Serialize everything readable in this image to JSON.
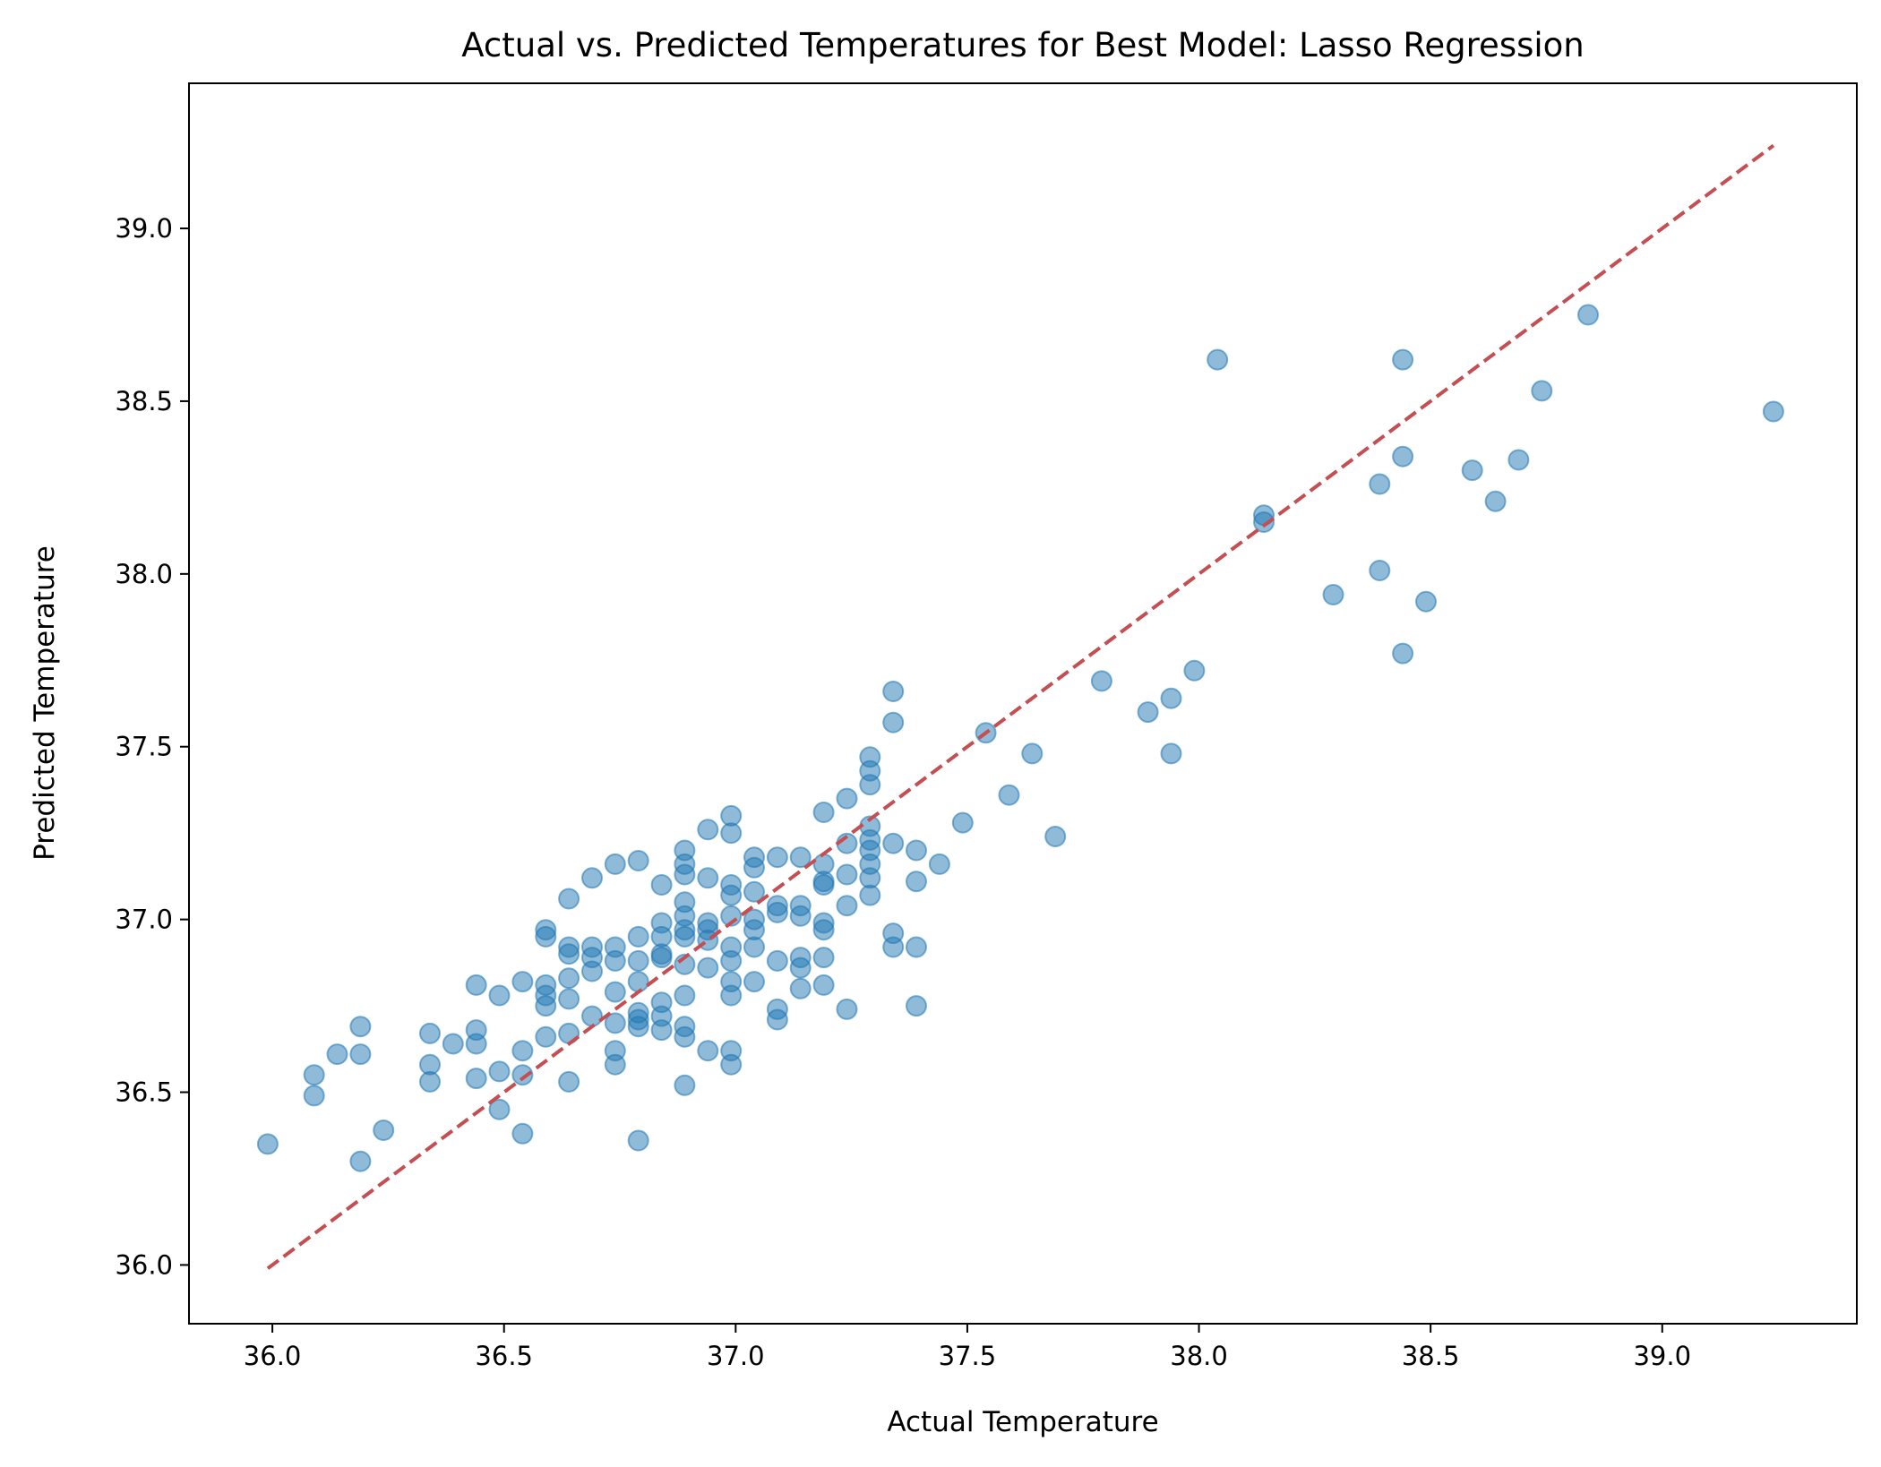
{
  "chart_data": {
    "type": "scatter",
    "title": "Actual vs. Predicted Temperatures for Best Model: Lasso Regression",
    "xlabel": "Actual Temperature",
    "ylabel": "Predicted Temperature",
    "xlim": [
      35.82,
      39.42
    ],
    "ylim": [
      35.83,
      39.42
    ],
    "xticks": [
      36.0,
      36.5,
      37.0,
      37.5,
      38.0,
      38.5,
      39.0
    ],
    "yticks": [
      36.0,
      36.5,
      37.0,
      37.5,
      38.0,
      38.5,
      39.0
    ],
    "xtick_labels": [
      "36.0",
      "36.5",
      "37.0",
      "37.5",
      "38.0",
      "38.5",
      "39.0"
    ],
    "ytick_labels": [
      "36.0",
      "36.5",
      "37.0",
      "37.5",
      "38.0",
      "38.5",
      "39.0"
    ],
    "grid": false,
    "reference_line": {
      "x": [
        35.99,
        39.24
      ],
      "y": [
        35.99,
        39.24
      ],
      "style": "dashed",
      "color": "#c44e52"
    },
    "point_color": "#1f77b4",
    "points": [
      [
        35.99,
        36.35
      ],
      [
        36.09,
        36.55
      ],
      [
        36.09,
        36.49
      ],
      [
        36.14,
        36.61
      ],
      [
        36.19,
        36.69
      ],
      [
        36.19,
        36.61
      ],
      [
        36.19,
        36.3
      ],
      [
        36.24,
        36.39
      ],
      [
        36.34,
        36.67
      ],
      [
        36.34,
        36.58
      ],
      [
        36.34,
        36.53
      ],
      [
        36.39,
        36.64
      ],
      [
        36.44,
        36.81
      ],
      [
        36.44,
        36.68
      ],
      [
        36.44,
        36.64
      ],
      [
        36.44,
        36.54
      ],
      [
        36.49,
        36.78
      ],
      [
        36.49,
        36.56
      ],
      [
        36.49,
        36.45
      ],
      [
        36.54,
        36.82
      ],
      [
        36.54,
        36.62
      ],
      [
        36.54,
        36.55
      ],
      [
        36.54,
        36.38
      ],
      [
        36.59,
        36.97
      ],
      [
        36.59,
        36.95
      ],
      [
        36.59,
        36.81
      ],
      [
        36.59,
        36.78
      ],
      [
        36.59,
        36.75
      ],
      [
        36.59,
        36.66
      ],
      [
        36.64,
        37.06
      ],
      [
        36.64,
        36.92
      ],
      [
        36.64,
        36.9
      ],
      [
        36.64,
        36.83
      ],
      [
        36.64,
        36.77
      ],
      [
        36.64,
        36.67
      ],
      [
        36.64,
        36.53
      ],
      [
        36.69,
        37.12
      ],
      [
        36.69,
        36.92
      ],
      [
        36.69,
        36.89
      ],
      [
        36.69,
        36.85
      ],
      [
        36.69,
        36.72
      ],
      [
        36.74,
        37.16
      ],
      [
        36.74,
        36.92
      ],
      [
        36.74,
        36.88
      ],
      [
        36.74,
        36.79
      ],
      [
        36.74,
        36.7
      ],
      [
        36.74,
        36.62
      ],
      [
        36.74,
        36.58
      ],
      [
        36.79,
        37.17
      ],
      [
        36.79,
        36.95
      ],
      [
        36.79,
        36.88
      ],
      [
        36.79,
        36.82
      ],
      [
        36.79,
        36.73
      ],
      [
        36.79,
        36.71
      ],
      [
        36.79,
        36.69
      ],
      [
        36.79,
        36.36
      ],
      [
        36.84,
        37.1
      ],
      [
        36.84,
        36.99
      ],
      [
        36.84,
        36.95
      ],
      [
        36.84,
        36.9
      ],
      [
        36.84,
        36.89
      ],
      [
        36.84,
        36.76
      ],
      [
        36.84,
        36.72
      ],
      [
        36.84,
        36.68
      ],
      [
        36.89,
        37.2
      ],
      [
        36.89,
        37.16
      ],
      [
        36.89,
        37.13
      ],
      [
        36.89,
        37.05
      ],
      [
        36.89,
        37.01
      ],
      [
        36.89,
        36.97
      ],
      [
        36.89,
        36.95
      ],
      [
        36.89,
        36.87
      ],
      [
        36.89,
        36.78
      ],
      [
        36.89,
        36.69
      ],
      [
        36.89,
        36.66
      ],
      [
        36.89,
        36.52
      ],
      [
        36.94,
        37.26
      ],
      [
        36.94,
        37.12
      ],
      [
        36.94,
        36.99
      ],
      [
        36.94,
        36.94
      ],
      [
        36.94,
        36.86
      ],
      [
        36.94,
        36.62
      ],
      [
        36.99,
        37.3
      ],
      [
        36.99,
        37.25
      ],
      [
        36.99,
        37.1
      ],
      [
        36.99,
        37.07
      ],
      [
        36.99,
        37.01
      ],
      [
        36.99,
        36.92
      ],
      [
        36.99,
        36.88
      ],
      [
        36.99,
        36.82
      ],
      [
        36.99,
        36.78
      ],
      [
        36.99,
        36.62
      ],
      [
        36.99,
        36.58
      ],
      [
        37.04,
        37.18
      ],
      [
        37.04,
        37.15
      ],
      [
        37.04,
        37.08
      ],
      [
        37.04,
        37.0
      ],
      [
        37.04,
        36.97
      ],
      [
        36.94,
        36.97
      ],
      [
        37.04,
        36.92
      ],
      [
        37.04,
        36.82
      ],
      [
        37.09,
        37.18
      ],
      [
        37.09,
        37.04
      ],
      [
        37.09,
        37.02
      ],
      [
        37.09,
        36.88
      ],
      [
        37.09,
        36.74
      ],
      [
        37.09,
        36.71
      ],
      [
        37.14,
        37.18
      ],
      [
        37.14,
        37.04
      ],
      [
        37.14,
        37.01
      ],
      [
        37.14,
        36.89
      ],
      [
        37.14,
        36.86
      ],
      [
        37.14,
        36.8
      ],
      [
        37.19,
        37.31
      ],
      [
        37.19,
        37.16
      ],
      [
        37.19,
        37.11
      ],
      [
        37.19,
        37.1
      ],
      [
        37.19,
        36.99
      ],
      [
        37.19,
        36.97
      ],
      [
        37.19,
        36.89
      ],
      [
        37.19,
        36.81
      ],
      [
        37.24,
        37.35
      ],
      [
        37.24,
        37.22
      ],
      [
        37.24,
        37.13
      ],
      [
        37.24,
        37.04
      ],
      [
        37.24,
        36.74
      ],
      [
        37.29,
        37.47
      ],
      [
        37.29,
        37.43
      ],
      [
        37.29,
        37.39
      ],
      [
        37.29,
        37.27
      ],
      [
        37.29,
        37.23
      ],
      [
        37.29,
        37.2
      ],
      [
        37.29,
        37.16
      ],
      [
        37.29,
        37.12
      ],
      [
        37.29,
        37.07
      ],
      [
        37.34,
        37.66
      ],
      [
        37.34,
        37.57
      ],
      [
        37.34,
        37.22
      ],
      [
        37.34,
        36.96
      ],
      [
        37.34,
        36.92
      ],
      [
        37.39,
        37.2
      ],
      [
        37.39,
        37.11
      ],
      [
        37.39,
        36.92
      ],
      [
        37.39,
        36.75
      ],
      [
        37.44,
        37.16
      ],
      [
        37.49,
        37.28
      ],
      [
        37.54,
        37.54
      ],
      [
        37.59,
        37.36
      ],
      [
        37.64,
        37.48
      ],
      [
        37.69,
        37.24
      ],
      [
        37.79,
        37.69
      ],
      [
        37.89,
        37.6
      ],
      [
        37.94,
        37.64
      ],
      [
        37.94,
        37.48
      ],
      [
        37.99,
        37.72
      ],
      [
        38.04,
        38.62
      ],
      [
        38.14,
        38.17
      ],
      [
        38.14,
        38.15
      ],
      [
        38.29,
        37.94
      ],
      [
        38.39,
        38.26
      ],
      [
        38.39,
        38.01
      ],
      [
        38.44,
        38.62
      ],
      [
        38.44,
        38.34
      ],
      [
        38.44,
        37.77
      ],
      [
        38.49,
        37.92
      ],
      [
        38.59,
        38.3
      ],
      [
        38.64,
        38.21
      ],
      [
        38.69,
        38.33
      ],
      [
        38.74,
        38.53
      ],
      [
        38.84,
        38.75
      ],
      [
        39.24,
        38.47
      ]
    ]
  }
}
